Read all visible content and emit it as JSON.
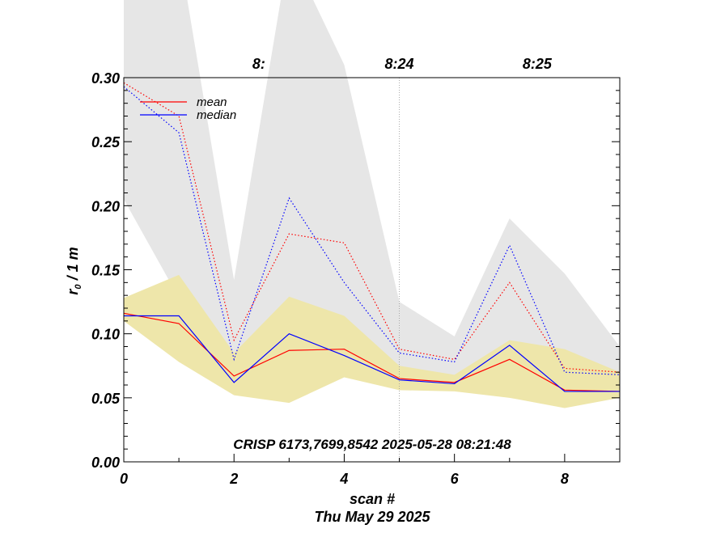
{
  "chart_data": {
    "type": "line",
    "title": "",
    "annotation": "CRISP 6173,7699,8542 2025-05-28 08:21:48",
    "xlabel": "scan #",
    "xlabel2": "Thu May 29 2025",
    "ylabel": "r",
    "ylabel_sub": "0",
    "ylabel_suffix": " / 1 m",
    "xlim": [
      0,
      9
    ],
    "ylim": [
      0,
      0.3
    ],
    "x_ticks": [
      0,
      2,
      4,
      6,
      8
    ],
    "x_tick_labels": [
      "0",
      "2",
      "4",
      "6",
      "8"
    ],
    "y_ticks": [
      0,
      0.05,
      0.1,
      0.15,
      0.2,
      0.25,
      0.3
    ],
    "y_tick_labels": [
      "0.00",
      "0.05",
      "0.10",
      "0.15",
      "0.20",
      "0.25",
      "0.30"
    ],
    "top_time_ticks": [
      {
        "x": 2.45,
        "label": "8:"
      },
      {
        "x": 5.0,
        "label": "8:24"
      },
      {
        "x": 7.5,
        "label": "8:25"
      }
    ],
    "x": [
      0,
      1,
      2,
      3,
      4,
      5,
      6,
      7,
      8,
      9
    ],
    "series": [
      {
        "name": "mean",
        "color": "#ff0000",
        "style": "solid",
        "values": [
          0.116,
          0.108,
          0.067,
          0.087,
          0.088,
          0.065,
          0.062,
          0.08,
          0.056,
          0.055
        ]
      },
      {
        "name": "median",
        "color": "#0000ff",
        "style": "solid",
        "values": [
          0.114,
          0.114,
          0.062,
          0.1,
          0.083,
          0.064,
          0.061,
          0.091,
          0.055,
          0.055
        ]
      },
      {
        "name": "mean (dotted)",
        "color": "#ff0000",
        "style": "dotted",
        "values": [
          0.296,
          0.27,
          0.095,
          0.178,
          0.171,
          0.088,
          0.08,
          0.14,
          0.073,
          0.07
        ]
      },
      {
        "name": "median (dotted)",
        "color": "#0000ff",
        "style": "dotted",
        "values": [
          0.293,
          0.257,
          0.08,
          0.206,
          0.14,
          0.085,
          0.078,
          0.169,
          0.07,
          0.068
        ]
      }
    ],
    "bands": [
      {
        "name": "upper range",
        "color": "#e6e6e6",
        "upper": [
          0.72,
          0.4,
          0.142,
          0.4,
          0.31,
          0.125,
          0.098,
          0.19,
          0.147,
          0.09
        ],
        "lower": [
          0.205,
          0.128,
          0.055,
          0.098,
          0.085,
          0.066,
          0.066,
          0.072,
          0.062,
          0.06
        ]
      },
      {
        "name": "lower range",
        "color": "#eee6aa",
        "upper": [
          0.128,
          0.146,
          0.085,
          0.129,
          0.114,
          0.075,
          0.068,
          0.095,
          0.088,
          0.07
        ],
        "lower": [
          0.11,
          0.078,
          0.052,
          0.046,
          0.066,
          0.056,
          0.055,
          0.05,
          0.042,
          0.05
        ]
      }
    ],
    "legend": {
      "position": "top-left",
      "entries": [
        {
          "label": "mean",
          "color": "#ff0000"
        },
        {
          "label": "median",
          "color": "#0000ff"
        }
      ]
    }
  }
}
